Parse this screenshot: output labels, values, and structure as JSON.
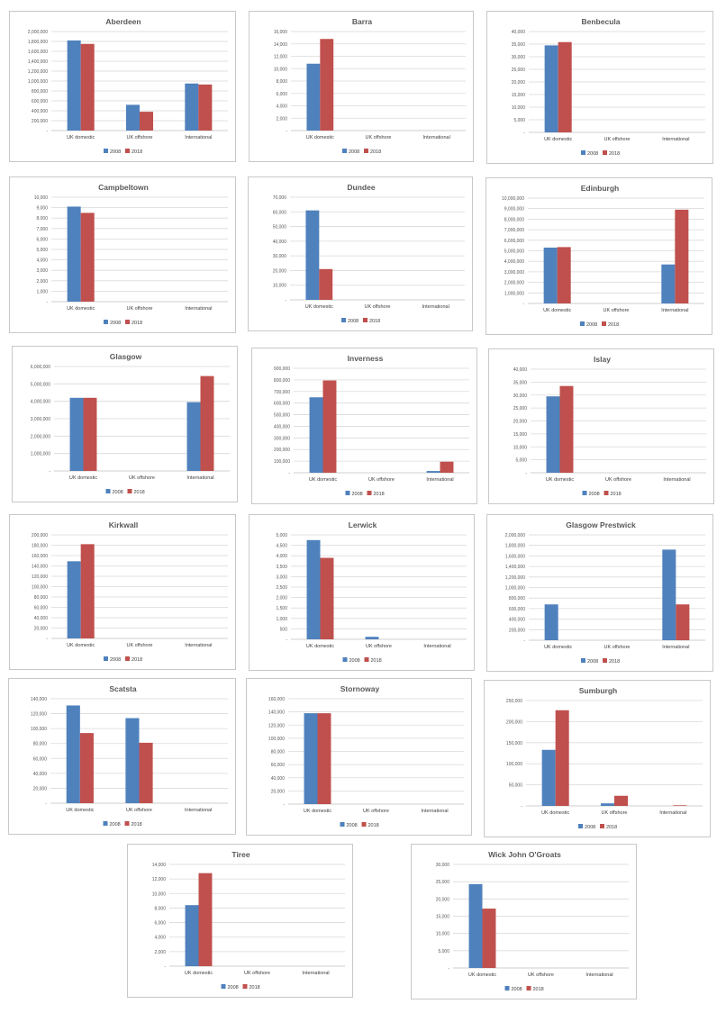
{
  "colors": {
    "s2008": "#4f81bd",
    "s2018": "#c0504d"
  },
  "chart_data": [
    {
      "type": "bar",
      "title": "Aberdeen",
      "categories": [
        "UK domestic",
        "UK offshore",
        "International"
      ],
      "series": [
        {
          "name": "2008",
          "values": [
            1820000,
            520000,
            950000
          ]
        },
        {
          "name": "2018",
          "values": [
            1750000,
            380000,
            930000
          ]
        }
      ],
      "ylim": [
        0,
        2000000
      ],
      "yticks": [
        "-",
        "200,000",
        "400,000",
        "600,000",
        "800,000",
        "1,000,000",
        "1,200,000",
        "1,400,000",
        "1,600,000",
        "1,800,000",
        "2,000,000"
      ],
      "grid": true,
      "legend": "bottom"
    },
    {
      "type": "bar",
      "title": "Barra",
      "categories": [
        "UK domestic",
        "UK offshore",
        "International"
      ],
      "series": [
        {
          "name": "2008",
          "values": [
            10800,
            0,
            0
          ]
        },
        {
          "name": "2018",
          "values": [
            14800,
            0,
            0
          ]
        }
      ],
      "ylim": [
        0,
        16000
      ],
      "yticks": [
        "-",
        "2,000",
        "4,000",
        "6,000",
        "8,000",
        "10,000",
        "12,000",
        "14,000",
        "16,000"
      ],
      "grid": true,
      "legend": "bottom"
    },
    {
      "type": "bar",
      "title": "Benbecula",
      "categories": [
        "UK domestic",
        "UK offshore",
        "International"
      ],
      "series": [
        {
          "name": "2008",
          "values": [
            34500,
            0,
            0
          ]
        },
        {
          "name": "2018",
          "values": [
            35800,
            0,
            0
          ]
        }
      ],
      "ylim": [
        0,
        40000
      ],
      "yticks": [
        "-",
        "5,000",
        "10,000",
        "15,000",
        "20,000",
        "25,000",
        "30,000",
        "35,000",
        "40,000"
      ],
      "grid": true,
      "legend": "bottom"
    },
    {
      "type": "bar",
      "title": "Campbeltown",
      "categories": [
        "UK domestic",
        "UK offshore",
        "International"
      ],
      "series": [
        {
          "name": "2008",
          "values": [
            9100,
            0,
            0
          ]
        },
        {
          "name": "2018",
          "values": [
            8500,
            0,
            0
          ]
        }
      ],
      "ylim": [
        0,
        10000
      ],
      "yticks": [
        "-",
        "1,000",
        "2,000",
        "3,000",
        "4,000",
        "5,000",
        "6,000",
        "7,000",
        "8,000",
        "9,000",
        "10,000"
      ],
      "grid": true,
      "legend": "bottom"
    },
    {
      "type": "bar",
      "title": "Dundee",
      "categories": [
        "UK domestic",
        "UK offshore",
        "International"
      ],
      "series": [
        {
          "name": "2008",
          "values": [
            61000,
            0,
            0
          ]
        },
        {
          "name": "2018",
          "values": [
            21000,
            0,
            0
          ]
        }
      ],
      "ylim": [
        0,
        70000
      ],
      "yticks": [
        "-",
        "10,000",
        "20,000",
        "30,000",
        "40,000",
        "50,000",
        "60,000",
        "70,000"
      ],
      "grid": true,
      "legend": "bottom"
    },
    {
      "type": "bar",
      "title": "Edinburgh",
      "categories": [
        "UK domestic",
        "UK offshore",
        "International"
      ],
      "series": [
        {
          "name": "2008",
          "values": [
            5300000,
            0,
            3700000
          ]
        },
        {
          "name": "2018",
          "values": [
            5350000,
            0,
            8900000
          ]
        }
      ],
      "ylim": [
        0,
        10000000
      ],
      "yticks": [
        "-",
        "1,000,000",
        "2,000,000",
        "3,000,000",
        "4,000,000",
        "5,000,000",
        "6,000,000",
        "7,000,000",
        "8,000,000",
        "9,000,000",
        "10,000,000"
      ],
      "grid": true,
      "legend": "bottom"
    },
    {
      "type": "bar",
      "title": "Glasgow",
      "categories": [
        "UK domestic",
        "UK offshore",
        "International"
      ],
      "series": [
        {
          "name": "2008",
          "values": [
            4200000,
            0,
            3950000
          ]
        },
        {
          "name": "2018",
          "values": [
            4200000,
            0,
            5450000
          ]
        }
      ],
      "ylim": [
        0,
        6000000
      ],
      "yticks": [
        "-",
        "1,000,000",
        "2,000,000",
        "3,000,000",
        "4,000,000",
        "5,000,000",
        "6,000,000"
      ],
      "grid": true,
      "legend": "bottom"
    },
    {
      "type": "bar",
      "title": "Inverness",
      "categories": [
        "UK domestic",
        "UK offshore",
        "International"
      ],
      "series": [
        {
          "name": "2008",
          "values": [
            650000,
            0,
            15000
          ]
        },
        {
          "name": "2018",
          "values": [
            795000,
            0,
            95000
          ]
        }
      ],
      "ylim": [
        0,
        900000
      ],
      "yticks": [
        "-",
        "100,000",
        "200,000",
        "300,000",
        "400,000",
        "500,000",
        "600,000",
        "700,000",
        "800,000",
        "900,000"
      ],
      "grid": true,
      "legend": "bottom"
    },
    {
      "type": "bar",
      "title": "Islay",
      "categories": [
        "UK domestic",
        "UK offshore",
        "International"
      ],
      "series": [
        {
          "name": "2008",
          "values": [
            29500,
            0,
            0
          ]
        },
        {
          "name": "2018",
          "values": [
            33500,
            0,
            0
          ]
        }
      ],
      "ylim": [
        0,
        40000
      ],
      "yticks": [
        "-",
        "5,000",
        "10,000",
        "15,000",
        "20,000",
        "25,000",
        "30,000",
        "35,000",
        "40,000"
      ],
      "grid": true,
      "legend": "bottom"
    },
    {
      "type": "bar",
      "title": "Kirkwall",
      "categories": [
        "UK domestic",
        "UK offshore",
        "International"
      ],
      "series": [
        {
          "name": "2008",
          "values": [
            149000,
            0,
            0
          ]
        },
        {
          "name": "2018",
          "values": [
            182000,
            0,
            0
          ]
        }
      ],
      "ylim": [
        0,
        200000
      ],
      "yticks": [
        "-",
        "20,000",
        "40,000",
        "60,000",
        "80,000",
        "100,000",
        "120,000",
        "140,000",
        "160,000",
        "180,000",
        "200,000"
      ],
      "grid": true,
      "legend": "bottom"
    },
    {
      "type": "bar",
      "title": "Lerwick",
      "categories": [
        "UK domestic",
        "UK offshore",
        "International"
      ],
      "series": [
        {
          "name": "2008",
          "values": [
            4750,
            120,
            0
          ]
        },
        {
          "name": "2018",
          "values": [
            3900,
            0,
            0
          ]
        }
      ],
      "ylim": [
        0,
        5000
      ],
      "yticks": [
        "-",
        "500",
        "1,000",
        "1,500",
        "2,000",
        "2,500",
        "3,000",
        "3,500",
        "4,000",
        "4,500",
        "5,000"
      ],
      "grid": true,
      "legend": "bottom"
    },
    {
      "type": "bar",
      "title": "Glasgow Prestwick",
      "categories": [
        "UK domestic",
        "UK offshore",
        "International"
      ],
      "series": [
        {
          "name": "2008",
          "values": [
            680000,
            0,
            1720000
          ]
        },
        {
          "name": "2018",
          "values": [
            0,
            0,
            680000
          ]
        }
      ],
      "ylim": [
        0,
        2000000
      ],
      "yticks": [
        "-",
        "200,000",
        "400,000",
        "600,000",
        "800,000",
        "1,000,000",
        "1,200,000",
        "1,400,000",
        "1,600,000",
        "1,800,000",
        "2,000,000"
      ],
      "grid": true,
      "legend": "bottom"
    },
    {
      "type": "bar",
      "title": "Scatsta",
      "categories": [
        "UK domestic",
        "UK offshore",
        "International"
      ],
      "series": [
        {
          "name": "2008",
          "values": [
            131000,
            114000,
            0
          ]
        },
        {
          "name": "2018",
          "values": [
            94000,
            81000,
            0
          ]
        }
      ],
      "ylim": [
        0,
        140000
      ],
      "yticks": [
        "-",
        "20,000",
        "40,000",
        "60,000",
        "80,000",
        "100,000",
        "120,000",
        "140,000"
      ],
      "grid": true,
      "legend": "bottom"
    },
    {
      "type": "bar",
      "title": "Stornoway",
      "categories": [
        "UK domestic",
        "UK offshore",
        "International"
      ],
      "series": [
        {
          "name": "2008",
          "values": [
            138000,
            0,
            0
          ]
        },
        {
          "name": "2018",
          "values": [
            138000,
            0,
            0
          ]
        }
      ],
      "ylim": [
        0,
        160000
      ],
      "yticks": [
        "-",
        "20,000",
        "40,000",
        "60,000",
        "80,000",
        "100,000",
        "120,000",
        "140,000",
        "160,000"
      ],
      "grid": true,
      "legend": "bottom"
    },
    {
      "type": "bar",
      "title": "Sumburgh",
      "categories": [
        "UK domestic",
        "UK offshore",
        "International"
      ],
      "series": [
        {
          "name": "2008",
          "values": [
            133000,
            6000,
            0
          ]
        },
        {
          "name": "2018",
          "values": [
            227000,
            24000,
            1500
          ]
        }
      ],
      "ylim": [
        0,
        250000
      ],
      "yticks": [
        "-",
        "50,000",
        "100,000",
        "150,000",
        "200,000",
        "250,000"
      ],
      "grid": true,
      "legend": "bottom"
    },
    {
      "type": "bar",
      "title": "Tiree",
      "categories": [
        "UK domestic",
        "UK offshore",
        "International"
      ],
      "series": [
        {
          "name": "2008",
          "values": [
            8400,
            0,
            0
          ]
        },
        {
          "name": "2018",
          "values": [
            12800,
            0,
            0
          ]
        }
      ],
      "ylim": [
        0,
        14000
      ],
      "yticks": [
        "-",
        "2,000",
        "4,000",
        "6,000",
        "8,000",
        "10,000",
        "12,000",
        "14,000"
      ],
      "grid": true,
      "legend": "bottom"
    },
    {
      "type": "bar",
      "title": "Wick John O'Groats",
      "categories": [
        "UK domestic",
        "UK offshore",
        "International"
      ],
      "series": [
        {
          "name": "2008",
          "values": [
            24300,
            0,
            0
          ]
        },
        {
          "name": "2018",
          "values": [
            17200,
            0,
            0
          ]
        }
      ],
      "ylim": [
        0,
        30000
      ],
      "yticks": [
        "-",
        "5,000",
        "10,000",
        "15,000",
        "20,000",
        "25,000",
        "30,000"
      ],
      "grid": true,
      "legend": "bottom"
    }
  ]
}
